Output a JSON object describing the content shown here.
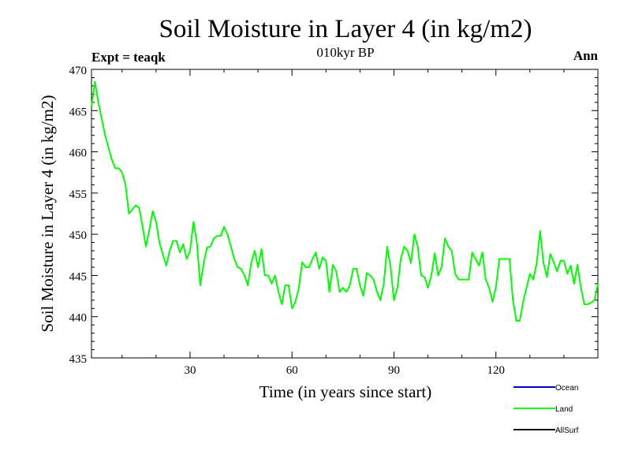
{
  "chart_data": {
    "type": "line",
    "title": "Soil Moisture in Layer 4 (in kg/m2)",
    "subtitle": "010kyr BP",
    "experiment_label": "Expt = teaqk",
    "season_label": "Ann",
    "xlabel": "Time (in years since start)",
    "ylabel": "Soil Moisture in Layer 4 (in kg/m2)",
    "xlim": [
      1,
      150
    ],
    "ylim": [
      435,
      470
    ],
    "x_ticks": [
      30,
      60,
      90,
      120
    ],
    "x_tick_labels": [
      "30",
      "60",
      "90",
      "120"
    ],
    "y_ticks": [
      435,
      440,
      445,
      450,
      455,
      460,
      465,
      470
    ],
    "y_tick_labels": [
      "435",
      "440",
      "445",
      "450",
      "455",
      "460",
      "465",
      "470"
    ],
    "legend": [
      {
        "name": "Ocean",
        "color": "#0000cc"
      },
      {
        "name": "Land",
        "color": "#00ff00"
      },
      {
        "name": "AllSurf",
        "color": "#000000"
      }
    ],
    "series": [
      {
        "name": "Land",
        "color": "#00ff00",
        "x_start": 1,
        "x_step": 1,
        "values": [
          465.5,
          468.5,
          466.0,
          464.0,
          462.0,
          460.5,
          459.0,
          458.0,
          458.0,
          457.5,
          456.0,
          452.5,
          453.0,
          453.5,
          453.2,
          451.0,
          448.5,
          450.5,
          452.8,
          451.5,
          449.0,
          447.5,
          446.2,
          448.0,
          449.2,
          449.2,
          447.8,
          448.8,
          447.0,
          448.0,
          451.5,
          449.0,
          443.8,
          446.5,
          448.4,
          448.5,
          449.5,
          449.8,
          449.8,
          450.9,
          450.0,
          448.5,
          447.0,
          446.0,
          445.8,
          445.0,
          443.8,
          446.5,
          448.0,
          446.0,
          448.2,
          445.0,
          445.0,
          444.0,
          445.0,
          443.0,
          441.5,
          443.8,
          443.8,
          441.0,
          441.8,
          443.5,
          446.6,
          446.0,
          446.0,
          447.0,
          447.8,
          445.8,
          447.2,
          446.8,
          443.0,
          446.3,
          445.5,
          443.0,
          443.5,
          443.0,
          443.8,
          445.8,
          445.8,
          443.8,
          442.5,
          445.3,
          445.0,
          444.5,
          443.0,
          442.0,
          444.0,
          448.5,
          446.0,
          442.0,
          443.5,
          447.0,
          448.5,
          448.0,
          446.5,
          450.0,
          448.5,
          445.0,
          444.8,
          443.5,
          445.0,
          447.7,
          445.0,
          446.0,
          449.5,
          448.5,
          448.0,
          445.2,
          444.5,
          444.5,
          444.5,
          444.5,
          447.8,
          447.0,
          446.2,
          447.8,
          444.5,
          443.5,
          441.8,
          443.6,
          447.0,
          447.0,
          447.0,
          447.0,
          442.0,
          439.5,
          439.5,
          441.8,
          443.5,
          445.2,
          444.5,
          446.5,
          450.4,
          446.5,
          444.8,
          447.6,
          446.6,
          445.5,
          446.8,
          446.8,
          445.2,
          446.2,
          444.0,
          446.3,
          443.5,
          441.5,
          441.5,
          441.7,
          442.0,
          444.0
        ]
      }
    ]
  }
}
